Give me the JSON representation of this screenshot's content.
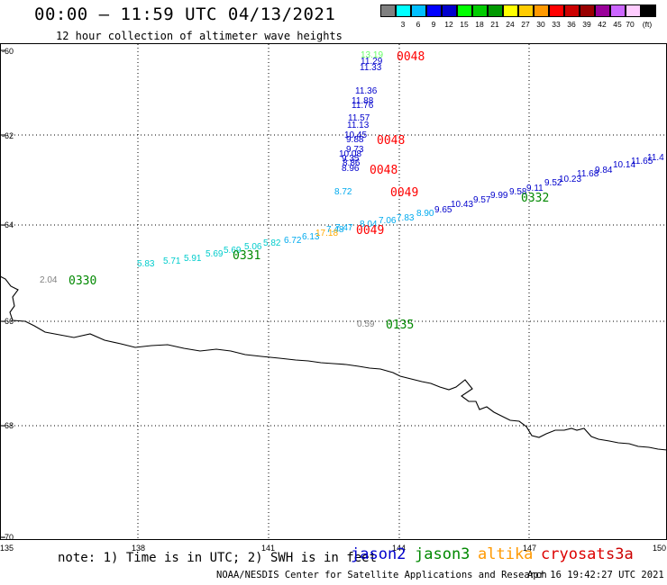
{
  "title": "00:00 – 11:59 UTC 04/13/2021",
  "subtitle": "12 hour collection of altimeter wave heights",
  "color_scale": {
    "unit": "(ft)",
    "bins": [
      {
        "label": "",
        "color": "#808080"
      },
      {
        "label": "3",
        "color": "#00ffff"
      },
      {
        "label": "6",
        "color": "#00bfff"
      },
      {
        "label": "9",
        "color": "#0000ff"
      },
      {
        "label": "12",
        "color": "#0000cd"
      },
      {
        "label": "15",
        "color": "#00ff00"
      },
      {
        "label": "18",
        "color": "#00cc00"
      },
      {
        "label": "21",
        "color": "#009900"
      },
      {
        "label": "24",
        "color": "#ffff00"
      },
      {
        "label": "27",
        "color": "#ffcc00"
      },
      {
        "label": "30",
        "color": "#ff9900"
      },
      {
        "label": "33",
        "color": "#ff0000"
      },
      {
        "label": "36",
        "color": "#cc0000"
      },
      {
        "label": "39",
        "color": "#990000"
      },
      {
        "label": "42",
        "color": "#990099"
      },
      {
        "label": "45",
        "color": "#cc66ff"
      },
      {
        "label": "70",
        "color": "#ffccff"
      },
      {
        "label": "",
        "color": "#000000"
      }
    ]
  },
  "axes": {
    "lon_ticks": [
      "135",
      "138",
      "141",
      "144",
      "147",
      "150"
    ],
    "lat_ticks": [
      "-60",
      "-62",
      "-64",
      "-66",
      "-68",
      "-70"
    ]
  },
  "passes": [
    {
      "label": "0048",
      "color": "#ff0000"
    },
    {
      "label": "0048",
      "color": "#ff0000"
    },
    {
      "label": "0048",
      "color": "#ff0000"
    },
    {
      "label": "0049",
      "color": "#ff0000"
    },
    {
      "label": "0049",
      "color": "#ff0000"
    },
    {
      "label": "0331",
      "color": "#008800"
    },
    {
      "label": "0330",
      "color": "#008800"
    },
    {
      "label": "0332",
      "color": "#008800"
    },
    {
      "label": "0135",
      "color": "#008800"
    }
  ],
  "measurements": [
    {
      "text": "13.19",
      "color": "#66ff66"
    },
    {
      "text": "11.29",
      "color": "#0000cc"
    },
    {
      "text": "11.33",
      "color": "#0000cc"
    },
    {
      "text": "11.36",
      "color": "#0000cc"
    },
    {
      "text": "11.88",
      "color": "#0000cc"
    },
    {
      "text": "11.76",
      "color": "#0000cc"
    },
    {
      "text": "11.57",
      "color": "#0000cc"
    },
    {
      "text": "11.13",
      "color": "#0000cc"
    },
    {
      "text": "10.45",
      "color": "#0000cc"
    },
    {
      "text": "9.88",
      "color": "#0000cc"
    },
    {
      "text": "9.73",
      "color": "#0000cc"
    },
    {
      "text": "10.08",
      "color": "#0000cc"
    },
    {
      "text": "9.35",
      "color": "#0000cc"
    },
    {
      "text": "8.86",
      "color": "#0000cc"
    },
    {
      "text": "8.96",
      "color": "#0000cc"
    },
    {
      "text": "8.72",
      "color": "#00aaee"
    },
    {
      "text": "5.83",
      "color": "#00cccc"
    },
    {
      "text": "5.71",
      "color": "#00cccc"
    },
    {
      "text": "5.91",
      "color": "#00cccc"
    },
    {
      "text": "5.69",
      "color": "#00cccc"
    },
    {
      "text": "5.69",
      "color": "#00cccc"
    },
    {
      "text": "5.06",
      "color": "#00cccc"
    },
    {
      "text": "5.82",
      "color": "#00cccc"
    },
    {
      "text": "6.72",
      "color": "#00aaee"
    },
    {
      "text": "6.13",
      "color": "#00aaee"
    },
    {
      "text": "7.48",
      "color": "#00aaee"
    },
    {
      "text": "17.18",
      "color": "#ffaa00"
    },
    {
      "text": "7.47",
      "color": "#00aaee"
    },
    {
      "text": "8.04",
      "color": "#00aaee"
    },
    {
      "text": "7.06",
      "color": "#00aaee"
    },
    {
      "text": "7.83",
      "color": "#00aaee"
    },
    {
      "text": "8.90",
      "color": "#00aaee"
    },
    {
      "text": "9.65",
      "color": "#0000cc"
    },
    {
      "text": "10.43",
      "color": "#0000cc"
    },
    {
      "text": "9.57",
      "color": "#0000cc"
    },
    {
      "text": "9.99",
      "color": "#0000cc"
    },
    {
      "text": "9.58",
      "color": "#0000cc"
    },
    {
      "text": "9.11",
      "color": "#0000cc"
    },
    {
      "text": "9.52",
      "color": "#0000cc"
    },
    {
      "text": "10.23",
      "color": "#0000cc"
    },
    {
      "text": "11.68",
      "color": "#0000cc"
    },
    {
      "text": "9.84",
      "color": "#0000cc"
    },
    {
      "text": "10.14",
      "color": "#0000cc"
    },
    {
      "text": "11.65",
      "color": "#0000cc"
    },
    {
      "text": "11.4",
      "color": "#0000cc"
    },
    {
      "text": "2.04",
      "color": "#808080"
    },
    {
      "text": "0.59",
      "color": "#808080"
    }
  ],
  "note": "note: 1) Time is in UTC; 2) SWH is in feet",
  "satellites": [
    {
      "name": "jason2",
      "color": "#0000cc"
    },
    {
      "name": "jason3",
      "color": "#008800"
    },
    {
      "name": "altika",
      "color": "#ff9900"
    },
    {
      "name": "cryosat",
      "color": "#dd0000"
    },
    {
      "name": "s3a",
      "color": "#cc0000"
    }
  ],
  "credit": "NOAA/NESDIS Center for Satellite Applications and Research",
  "timestamp": "Apr 16 19:42:27 UTC 2021"
}
